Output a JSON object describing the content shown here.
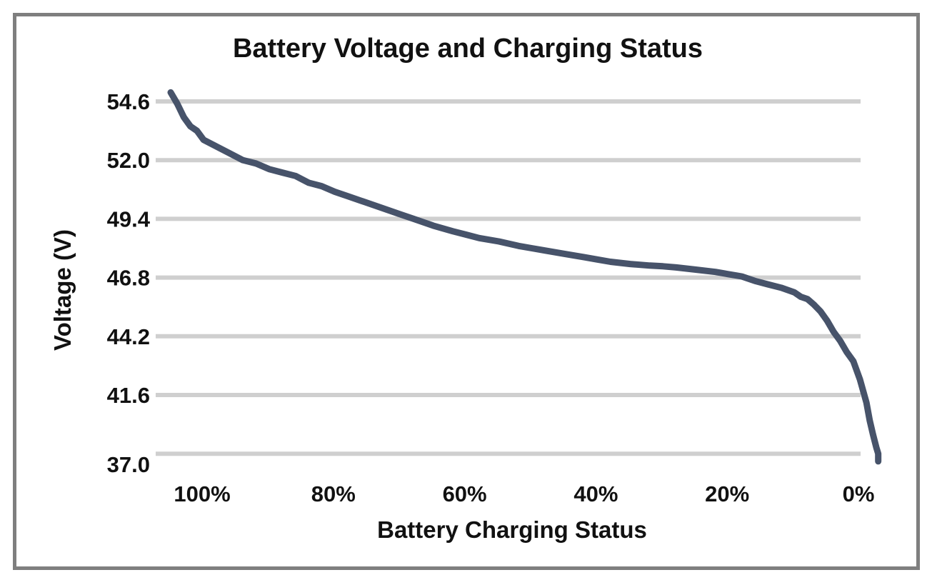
{
  "chart_data": {
    "type": "line",
    "title": "Battery Voltage and Charging Status",
    "xlabel": "Battery Charging Status",
    "ylabel": "Voltage (V)",
    "x_ticks": [
      "100%",
      "80%",
      "60%",
      "40%",
      "20%",
      "0%"
    ],
    "y_ticks": [
      "54.6",
      "52.0",
      "49.4",
      "46.8",
      "44.2",
      "41.6",
      "37.0"
    ],
    "xlim": [
      105,
      -3
    ],
    "ylim": [
      37.0,
      54.6
    ],
    "grid": true,
    "legend": "none",
    "colors": {
      "series": "#47536a",
      "grid": "#cfcfcf",
      "frame": "#7f7f7f"
    },
    "series": [
      {
        "x": [
          105,
          104,
          103,
          102,
          101,
          100,
          98,
          96,
          94,
          92,
          90,
          88,
          86,
          84,
          82,
          80,
          78,
          76,
          74,
          72,
          70,
          68,
          65,
          62,
          60,
          58,
          55,
          52,
          50,
          48,
          45,
          42,
          40,
          38,
          35,
          32,
          30,
          28,
          25,
          22,
          20,
          18,
          16,
          14,
          12,
          10,
          9,
          8,
          7,
          6,
          5,
          4,
          3,
          2,
          1,
          0,
          -1,
          -1.5,
          -2,
          -2.5,
          -2.8,
          -2.8
        ],
        "y": [
          55.0,
          54.5,
          53.9,
          53.5,
          53.3,
          52.9,
          52.6,
          52.3,
          52.0,
          51.85,
          51.6,
          51.45,
          51.3,
          51.0,
          50.85,
          50.6,
          50.4,
          50.2,
          50.0,
          49.8,
          49.6,
          49.4,
          49.1,
          48.85,
          48.7,
          48.55,
          48.4,
          48.2,
          48.1,
          48.0,
          47.85,
          47.7,
          47.6,
          47.5,
          47.4,
          47.33,
          47.3,
          47.25,
          47.15,
          47.05,
          46.95,
          46.85,
          46.65,
          46.5,
          46.35,
          46.15,
          45.95,
          45.85,
          45.6,
          45.3,
          44.9,
          44.4,
          44.0,
          43.5,
          43.1,
          42.3,
          41.0,
          39.6,
          38.5,
          37.5,
          37.0,
          36.4
        ]
      }
    ]
  }
}
